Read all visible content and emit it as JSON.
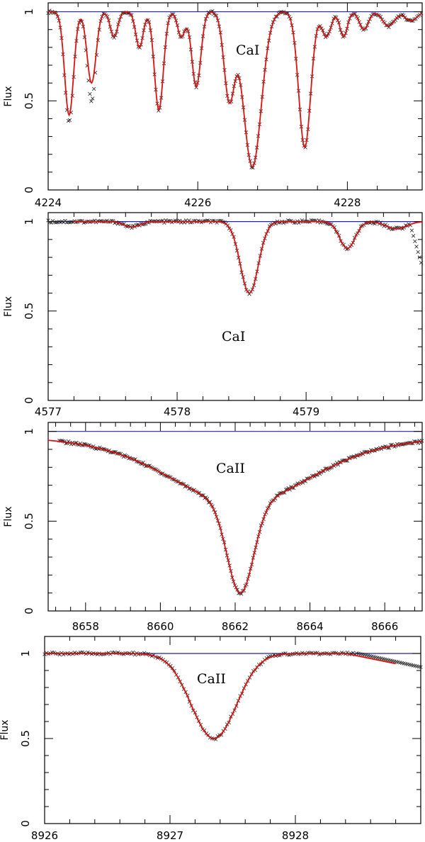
{
  "colors": {
    "observed": "#222222",
    "model": "#dd1111",
    "continuum": "#2222aa"
  },
  "chart_data": [
    {
      "type": "line",
      "ylabel": "Flux",
      "annotation": "CaI",
      "xlim": [
        4224,
        4229
      ],
      "ylim": [
        0,
        1.05
      ],
      "xticks_major": [
        "4224",
        "4226",
        "4228"
      ],
      "yticks_major": [
        "0",
        "0.5",
        "1"
      ],
      "continuum": 1.0,
      "lines": [
        {
          "center": 4224.28,
          "depth": 0.58,
          "width": 0.06
        },
        {
          "center": 4224.58,
          "depth": 0.4,
          "width": 0.06
        },
        {
          "center": 4224.88,
          "depth": 0.14,
          "width": 0.05
        },
        {
          "center": 4225.22,
          "depth": 0.2,
          "width": 0.05
        },
        {
          "center": 4225.48,
          "depth": 0.55,
          "width": 0.06
        },
        {
          "center": 4225.78,
          "depth": 0.14,
          "width": 0.05
        },
        {
          "center": 4225.98,
          "depth": 0.42,
          "width": 0.06
        },
        {
          "center": 4226.42,
          "depth": 0.48,
          "width": 0.07
        },
        {
          "center": 4226.73,
          "depth": 0.87,
          "width": 0.12
        },
        {
          "center": 4227.43,
          "depth": 0.76,
          "width": 0.08
        },
        {
          "center": 4227.72,
          "depth": 0.14,
          "width": 0.06
        },
        {
          "center": 4227.95,
          "depth": 0.14,
          "width": 0.05
        },
        {
          "center": 4228.22,
          "depth": 0.1,
          "width": 0.06
        },
        {
          "center": 4228.55,
          "depth": 0.08,
          "width": 0.08
        },
        {
          "center": 4228.85,
          "depth": 0.05,
          "width": 0.08
        }
      ],
      "model_xrange": [
        4224,
        4229
      ],
      "obs_xrange": [
        4224,
        4229
      ],
      "obs_step": 0.018
    },
    {
      "type": "line",
      "ylabel": "Flux",
      "annotation": "CaI",
      "xlim": [
        4577,
        4579.9
      ],
      "ylim": [
        0,
        1.05
      ],
      "xticks_major": [
        "4577",
        "4578",
        "4579"
      ],
      "yticks_major": [
        "0",
        "0.5",
        "1"
      ],
      "continuum": 1.0,
      "lines": [
        {
          "center": 4578.56,
          "depth": 0.4,
          "width": 0.07
        },
        {
          "center": 4577.65,
          "depth": 0.03,
          "width": 0.06
        },
        {
          "center": 4579.32,
          "depth": 0.15,
          "width": 0.06
        },
        {
          "center": 4579.7,
          "depth": 0.04,
          "width": 0.08
        }
      ],
      "model_xrange": [
        4577.2,
        4579.9
      ],
      "obs_xrange": [
        4577,
        4579.9
      ],
      "obs_step": 0.012
    },
    {
      "type": "line",
      "ylabel": "Flux",
      "annotation": "CaII",
      "xlim": [
        8657,
        8667
      ],
      "ylim": [
        0,
        1.05
      ],
      "xticks_major": [
        "8658",
        "8660",
        "8662",
        "8664",
        "8666"
      ],
      "yticks_major": [
        "0",
        "0.5",
        "1"
      ],
      "continuum": 1.0,
      "lines": [
        {
          "center": 8662.14,
          "depth": 0.5,
          "width": 0.35
        },
        {
          "center": 8662.14,
          "depth": 0.22,
          "width": 1.8
        }
      ],
      "wing_lorentz": {
        "center": 8662.14,
        "amp": 0.18,
        "gamma": 3.0
      },
      "model_xrange": [
        8657,
        8667
      ],
      "obs_xrange": [
        8657.3,
        8667
      ],
      "obs_step": 0.035
    },
    {
      "type": "line",
      "ylabel": "Flux",
      "annotation": "CaII",
      "xlim": [
        8926,
        8929
      ],
      "ylim": [
        0,
        1.1
      ],
      "xticks_major": [
        "8926",
        "8927",
        "8928"
      ],
      "yticks_major": [
        "0",
        "0.5",
        "1"
      ],
      "continuum": 1.0,
      "lines": [
        {
          "center": 8927.35,
          "depth": 0.5,
          "width": 0.18
        }
      ],
      "model_xrange": [
        8926,
        8928.8
      ],
      "obs_xrange": [
        8926,
        8929
      ],
      "obs_step": 0.015
    }
  ]
}
